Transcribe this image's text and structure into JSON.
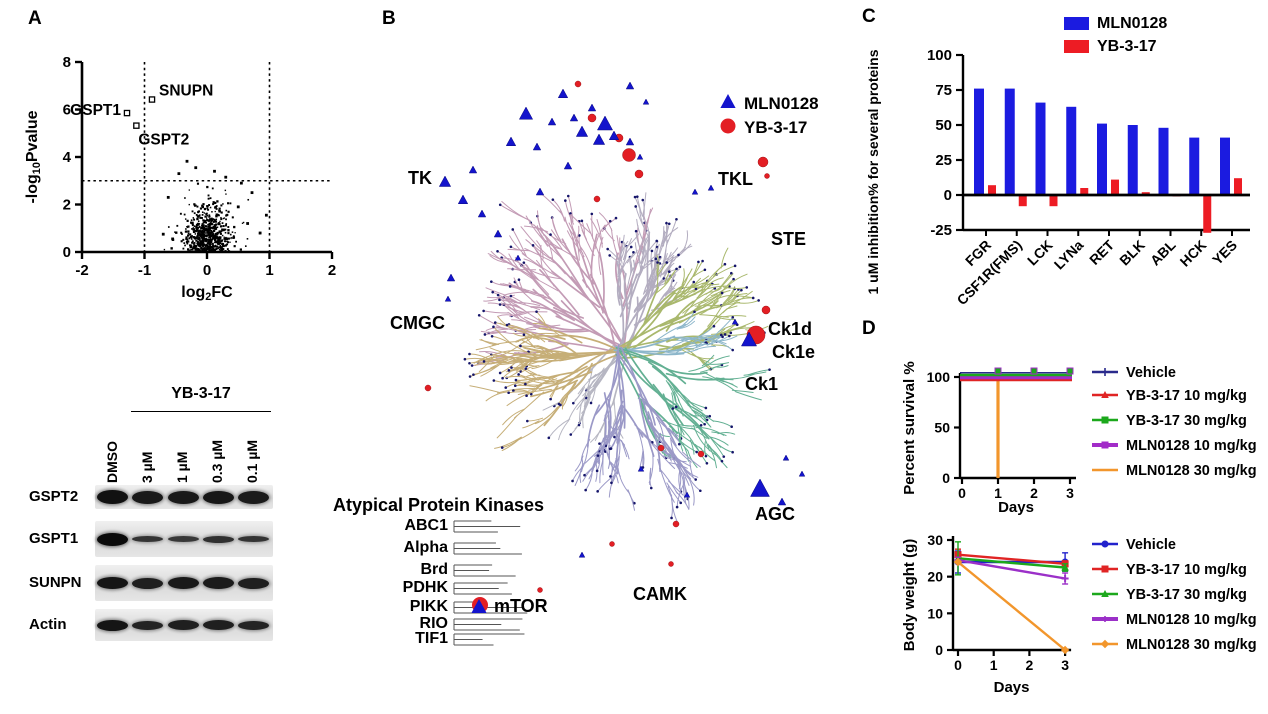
{
  "panels": {
    "a": "A",
    "b": "B",
    "c": "C",
    "d": "D"
  },
  "colors": {
    "mln0128_blue": "#1b1bd8",
    "yb317_red": "#e31e24",
    "group_label_green": "#5a9e32",
    "highlight_red": "#d42422"
  },
  "kinome": {
    "legend": [
      {
        "label": "MLN0128",
        "marker": "triangle"
      },
      {
        "label": "YB-3-17",
        "marker": "circle"
      }
    ],
    "group_labels": [
      "TK",
      "TKL",
      "STE",
      "CMGC",
      "Ck1",
      "AGC",
      "CAMK"
    ],
    "highlight_labels": [
      "Ck1d",
      "Ck1e"
    ],
    "atypical": {
      "title": "Atypical Protein Kinases",
      "rows": [
        "ABC1",
        "Alpha",
        "Brd",
        "PDHK",
        "PIKK",
        "RIO",
        "TIF1"
      ],
      "mtor_label": "mTOR"
    }
  },
  "blot": {
    "treatment_header": "YB-3-17",
    "lanes": [
      "DMSO",
      "3 µM",
      "1 µM",
      "0.3 µM",
      "0.1 µM"
    ],
    "rows": [
      {
        "label": "GSPT2",
        "band_thickness": [
          14,
          13,
          13,
          13,
          13
        ],
        "band_intensity": [
          0.97,
          0.93,
          0.93,
          0.94,
          0.92
        ]
      },
      {
        "label": "GSPT1",
        "band_thickness": [
          13,
          6,
          6,
          7,
          6
        ],
        "band_intensity": [
          1,
          0.8,
          0.78,
          0.82,
          0.8
        ]
      },
      {
        "label": "SUNPN",
        "band_thickness": [
          12,
          11,
          12,
          12,
          11
        ],
        "band_intensity": [
          0.95,
          0.9,
          0.93,
          0.92,
          0.9
        ]
      },
      {
        "label": "Actin",
        "band_thickness": [
          11,
          9,
          10,
          10,
          9
        ],
        "band_intensity": [
          0.95,
          0.88,
          0.9,
          0.9,
          0.88
        ]
      }
    ]
  },
  "chart_data": [
    {
      "id": "volcano",
      "type": "scatter",
      "title": "",
      "xlabel": "log2FC",
      "ylabel": "-log10Pvalue",
      "xlim": [
        -2,
        2
      ],
      "ylim": [
        0,
        8
      ],
      "xticks": [
        -2,
        -1,
        0,
        1,
        2
      ],
      "yticks": [
        0,
        2,
        4,
        6,
        8
      ],
      "threshold_lines": {
        "x": [
          -1,
          1
        ],
        "y": [
          3
        ]
      },
      "labeled_points": [
        {
          "label": "GSPT1",
          "x": -1.28,
          "y": 5.85
        },
        {
          "label": "GSPT2",
          "x": -1.13,
          "y": 5.32
        },
        {
          "label": "SNUPN",
          "x": -0.88,
          "y": 6.42
        }
      ],
      "cloud": {
        "n": 680,
        "x_center": 0,
        "x_spread": 0.2,
        "y_range": [
          0,
          3.9
        ]
      },
      "outliers": [
        [
          -0.32,
          3.82
        ],
        [
          -0.18,
          3.55
        ],
        [
          0.12,
          3.4
        ],
        [
          0.3,
          3.15
        ],
        [
          -0.45,
          3.3
        ],
        [
          0.55,
          2.9
        ],
        [
          0.72,
          2.5
        ],
        [
          0.95,
          1.55
        ],
        [
          -0.62,
          2.3
        ],
        [
          0.5,
          1.9
        ],
        [
          0.65,
          1.2
        ],
        [
          0.85,
          0.8
        ],
        [
          -0.55,
          0.55
        ],
        [
          -0.7,
          0.75
        ]
      ]
    },
    {
      "id": "kinase_inhibition",
      "type": "bar",
      "categories": [
        "FGR",
        "CSF1R(FMS)",
        "LCK",
        "LYNa",
        "RET",
        "BLK",
        "ABL",
        "HCK",
        "YES"
      ],
      "series": [
        {
          "name": "MLN0128",
          "color": "#1b1be0",
          "values": [
            76,
            76,
            66,
            63,
            51,
            50,
            48,
            41,
            41
          ]
        },
        {
          "name": "YB-3-17",
          "color": "#ed1c24",
          "values": [
            7,
            -8,
            -8,
            5,
            11,
            2,
            -1,
            -27,
            12
          ]
        }
      ],
      "xlabel": "",
      "ylabel": "1 uM inhibition% for several proteins",
      "ylim": [
        -25,
        100
      ],
      "yticks": [
        -25,
        0,
        25,
        50,
        75,
        100
      ],
      "legend_position": "top"
    },
    {
      "id": "survival",
      "type": "line",
      "x": [
        0,
        1,
        2,
        3
      ],
      "xticks": [
        0,
        1,
        2,
        3
      ],
      "series": [
        {
          "name": "Vehicle",
          "color": "#2a2a8c",
          "marker": "tick",
          "values": [
            100,
            100,
            100,
            100
          ]
        },
        {
          "name": "YB-3-17 10 mg/kg",
          "color": "#e02424",
          "marker": "tri",
          "values": [
            100,
            100,
            100,
            100
          ]
        },
        {
          "name": "YB-3-17 30 mg/kg",
          "color": "#1ca81c",
          "marker": "sq",
          "values": [
            100,
            100,
            100,
            100
          ]
        },
        {
          "name": "MLN0128 10 mg/kg",
          "color": "#a22cc8",
          "marker": "sq",
          "values": [
            100,
            100,
            100,
            100
          ]
        },
        {
          "name": "MLN0128 30 mg/kg",
          "color": "#f2962c",
          "marker": "none",
          "values": [
            100,
            0,
            null,
            null
          ]
        }
      ],
      "xlabel": "Days",
      "ylabel": "Percent survival %",
      "ylim": [
        0,
        100
      ],
      "yticks": [
        0,
        50,
        100
      ]
    },
    {
      "id": "body_weight",
      "type": "line",
      "x": [
        0,
        3
      ],
      "xticks": [
        0,
        1,
        2,
        3
      ],
      "series": [
        {
          "name": "Vehicle",
          "color": "#2222cc",
          "marker": "circle",
          "values": [
            24,
            24
          ],
          "err": [
            3,
            2.5
          ]
        },
        {
          "name": "YB-3-17 10 mg/kg",
          "color": "#e02424",
          "marker": "sq",
          "values": [
            26,
            23.5
          ],
          "err": [
            1.5,
            0.8
          ]
        },
        {
          "name": "YB-3-17 30 mg/kg",
          "color": "#1ca81c",
          "marker": "tri",
          "values": [
            25,
            22.5
          ],
          "err": [
            4.5,
            1
          ]
        },
        {
          "name": "MLN0128 10 mg/kg",
          "color": "#9b30c8",
          "marker": "plus",
          "values": [
            24.5,
            19.5
          ],
          "err": [
            0.8,
            1.5
          ]
        },
        {
          "name": "MLN0128 30 mg/kg",
          "color": "#f2962c",
          "marker": "diam",
          "values": [
            24,
            0
          ],
          "err": [
            0,
            0
          ]
        }
      ],
      "xlabel": "Days",
      "ylabel": "Body weight (g)",
      "ylim": [
        0,
        30
      ],
      "yticks": [
        0,
        10,
        20,
        30
      ]
    }
  ]
}
